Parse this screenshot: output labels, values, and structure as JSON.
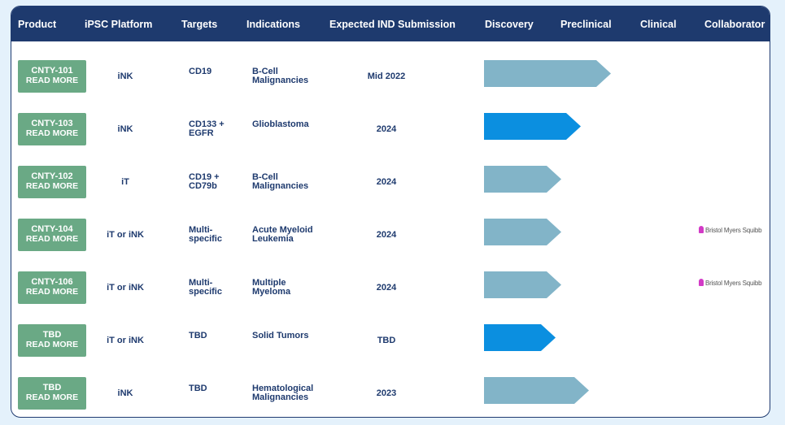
{
  "colors": {
    "header_bg": "#1e3a6e",
    "button_bg": "#6aa985",
    "bar_light": "#82b4c8",
    "bar_dark": "#0b8fe0",
    "collaborator_logo": "#d23ac6"
  },
  "header": {
    "product": "Product",
    "platform": "iPSC Platform",
    "targets": "Targets",
    "indications": "Indications",
    "ind": "Expected IND Submission",
    "discovery": "Discovery",
    "preclinical": "Preclinical",
    "clinical": "Clinical",
    "collaborator": "Collaborator"
  },
  "rows": [
    {
      "product": "CNTY-101",
      "read_more": "READ MORE",
      "platform": "iNK",
      "targets": [
        "CD19",
        ""
      ],
      "indication": [
        "B-Cell",
        "Malignancies"
      ],
      "ind": "Mid 2022",
      "collaborator": "",
      "progress": {
        "stage": "Preclinical",
        "fraction_of_pipeline": 0.46,
        "style": "light"
      }
    },
    {
      "product": "CNTY-103",
      "read_more": "READ MORE",
      "platform": "iNK",
      "targets": [
        "CD133 +",
        "EGFR"
      ],
      "indication": [
        "Glioblastoma",
        ""
      ],
      "ind": "2024",
      "collaborator": "",
      "progress": {
        "stage": "Preclinical",
        "fraction_of_pipeline": 0.35,
        "style": "dark"
      }
    },
    {
      "product": "CNTY-102",
      "read_more": "READ MORE",
      "platform": "iT",
      "targets": [
        "CD19 +",
        "CD79b"
      ],
      "indication": [
        "B-Cell",
        "Malignancies"
      ],
      "ind": "2024",
      "collaborator": "",
      "progress": {
        "stage": "Discovery",
        "fraction_of_pipeline": 0.28,
        "style": "light"
      }
    },
    {
      "product": "CNTY-104",
      "read_more": "READ MORE",
      "platform": "iT or iNK",
      "targets": [
        "Multi-",
        "specific"
      ],
      "indication": [
        "Acute Myeloid",
        "Leukemia"
      ],
      "ind": "2024",
      "collaborator": "Bristol Myers Squibb",
      "progress": {
        "stage": "Discovery",
        "fraction_of_pipeline": 0.28,
        "style": "light"
      }
    },
    {
      "product": "CNTY-106",
      "read_more": "READ MORE",
      "platform": "iT or iNK",
      "targets": [
        "Multi-",
        "specific"
      ],
      "indication": [
        "Multiple",
        "Myeloma"
      ],
      "ind": "2024",
      "collaborator": "Bristol Myers Squibb",
      "progress": {
        "stage": "Discovery",
        "fraction_of_pipeline": 0.28,
        "style": "light"
      }
    },
    {
      "product": "TBD",
      "read_more": "READ MORE",
      "platform": "iT or iNK",
      "targets": [
        "TBD",
        ""
      ],
      "indication": [
        "Solid Tumors",
        ""
      ],
      "ind": "TBD",
      "collaborator": "",
      "progress": {
        "stage": "Discovery",
        "fraction_of_pipeline": 0.26,
        "style": "dark"
      }
    },
    {
      "product": "TBD",
      "read_more": "READ MORE",
      "platform": "iNK",
      "targets": [
        "TBD",
        ""
      ],
      "indication": [
        "Hematological",
        "Malignancies"
      ],
      "ind": "2023",
      "collaborator": "",
      "progress": {
        "stage": "Preclinical",
        "fraction_of_pipeline": 0.38,
        "style": "light"
      }
    }
  ]
}
